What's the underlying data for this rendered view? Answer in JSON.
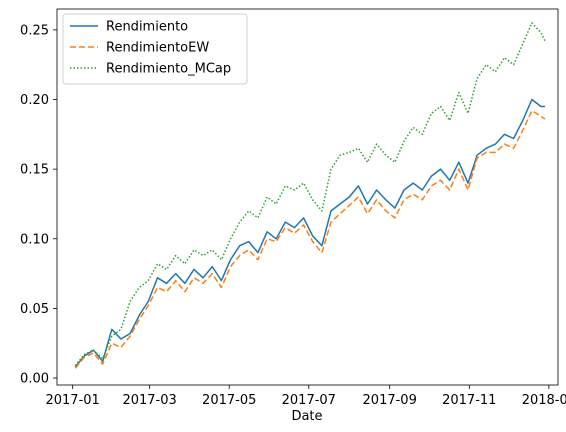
{
  "chart_data": {
    "type": "line",
    "title": "",
    "xlabel": "Date",
    "ylabel": "",
    "xlim": [
      "2016-12-20",
      "2018-01-08"
    ],
    "ylim": [
      -0.005,
      0.265
    ],
    "grid": false,
    "legend_position": "top-left",
    "x_ticks": [
      "2017-01",
      "2017-03",
      "2017-05",
      "2017-07",
      "2017-09",
      "2017-11",
      "2018-01"
    ],
    "x_tick_labels": [
      "2017-01",
      "2017-03",
      "2017-05",
      "2017-07",
      "2017-09",
      "2017-11",
      "2018-01"
    ],
    "y_ticks": [
      0.0,
      0.05,
      0.1,
      0.15,
      0.2,
      0.25
    ],
    "y_tick_labels": [
      "0.00",
      "0.05",
      "0.10",
      "0.15",
      "0.20",
      "0.25"
    ],
    "x": [
      "2017-01-03",
      "2017-01-10",
      "2017-01-17",
      "2017-01-24",
      "2017-01-31",
      "2017-02-07",
      "2017-02-14",
      "2017-02-21",
      "2017-02-28",
      "2017-03-07",
      "2017-03-14",
      "2017-03-21",
      "2017-03-28",
      "2017-04-04",
      "2017-04-11",
      "2017-04-18",
      "2017-04-25",
      "2017-05-02",
      "2017-05-09",
      "2017-05-16",
      "2017-05-23",
      "2017-05-30",
      "2017-06-06",
      "2017-06-13",
      "2017-06-20",
      "2017-06-27",
      "2017-07-04",
      "2017-07-11",
      "2017-07-18",
      "2017-07-25",
      "2017-08-01",
      "2017-08-08",
      "2017-08-15",
      "2017-08-22",
      "2017-08-29",
      "2017-09-05",
      "2017-09-12",
      "2017-09-19",
      "2017-09-26",
      "2017-10-03",
      "2017-10-10",
      "2017-10-17",
      "2017-10-24",
      "2017-10-31",
      "2017-11-07",
      "2017-11-14",
      "2017-11-21",
      "2017-11-28",
      "2017-12-05",
      "2017-12-12",
      "2017-12-19",
      "2017-12-26",
      "2017-12-29"
    ],
    "series": [
      {
        "name": "Rendimiento",
        "color": "#1f77b4",
        "dash": "solid",
        "values": [
          0.008,
          0.016,
          0.02,
          0.012,
          0.035,
          0.028,
          0.032,
          0.045,
          0.055,
          0.072,
          0.068,
          0.075,
          0.068,
          0.078,
          0.072,
          0.08,
          0.07,
          0.085,
          0.095,
          0.098,
          0.09,
          0.105,
          0.1,
          0.112,
          0.108,
          0.115,
          0.102,
          0.095,
          0.12,
          0.125,
          0.13,
          0.138,
          0.125,
          0.135,
          0.128,
          0.122,
          0.135,
          0.14,
          0.135,
          0.145,
          0.15,
          0.142,
          0.155,
          0.14,
          0.16,
          0.165,
          0.168,
          0.175,
          0.172,
          0.185,
          0.2,
          0.195,
          0.195
        ]
      },
      {
        "name": "RendimientoEW",
        "color": "#ff7f0e",
        "dash": "dashed",
        "values": [
          0.007,
          0.015,
          0.018,
          0.01,
          0.025,
          0.022,
          0.03,
          0.042,
          0.052,
          0.065,
          0.062,
          0.07,
          0.062,
          0.072,
          0.068,
          0.075,
          0.065,
          0.08,
          0.088,
          0.092,
          0.085,
          0.1,
          0.098,
          0.108,
          0.104,
          0.11,
          0.098,
          0.09,
          0.112,
          0.118,
          0.124,
          0.13,
          0.118,
          0.128,
          0.12,
          0.115,
          0.128,
          0.132,
          0.128,
          0.138,
          0.142,
          0.135,
          0.15,
          0.135,
          0.158,
          0.162,
          0.162,
          0.168,
          0.165,
          0.178,
          0.192,
          0.188,
          0.186
        ]
      },
      {
        "name": "Rendimiento_MCap",
        "color": "#2ca02c",
        "dash": "dotted",
        "values": [
          0.009,
          0.017,
          0.02,
          0.014,
          0.03,
          0.035,
          0.055,
          0.065,
          0.07,
          0.082,
          0.078,
          0.088,
          0.082,
          0.092,
          0.088,
          0.092,
          0.085,
          0.1,
          0.112,
          0.12,
          0.115,
          0.13,
          0.125,
          0.138,
          0.135,
          0.14,
          0.128,
          0.12,
          0.15,
          0.16,
          0.162,
          0.165,
          0.155,
          0.168,
          0.16,
          0.155,
          0.17,
          0.18,
          0.175,
          0.19,
          0.195,
          0.185,
          0.205,
          0.19,
          0.215,
          0.225,
          0.22,
          0.23,
          0.225,
          0.24,
          0.255,
          0.248,
          0.242
        ]
      }
    ]
  }
}
